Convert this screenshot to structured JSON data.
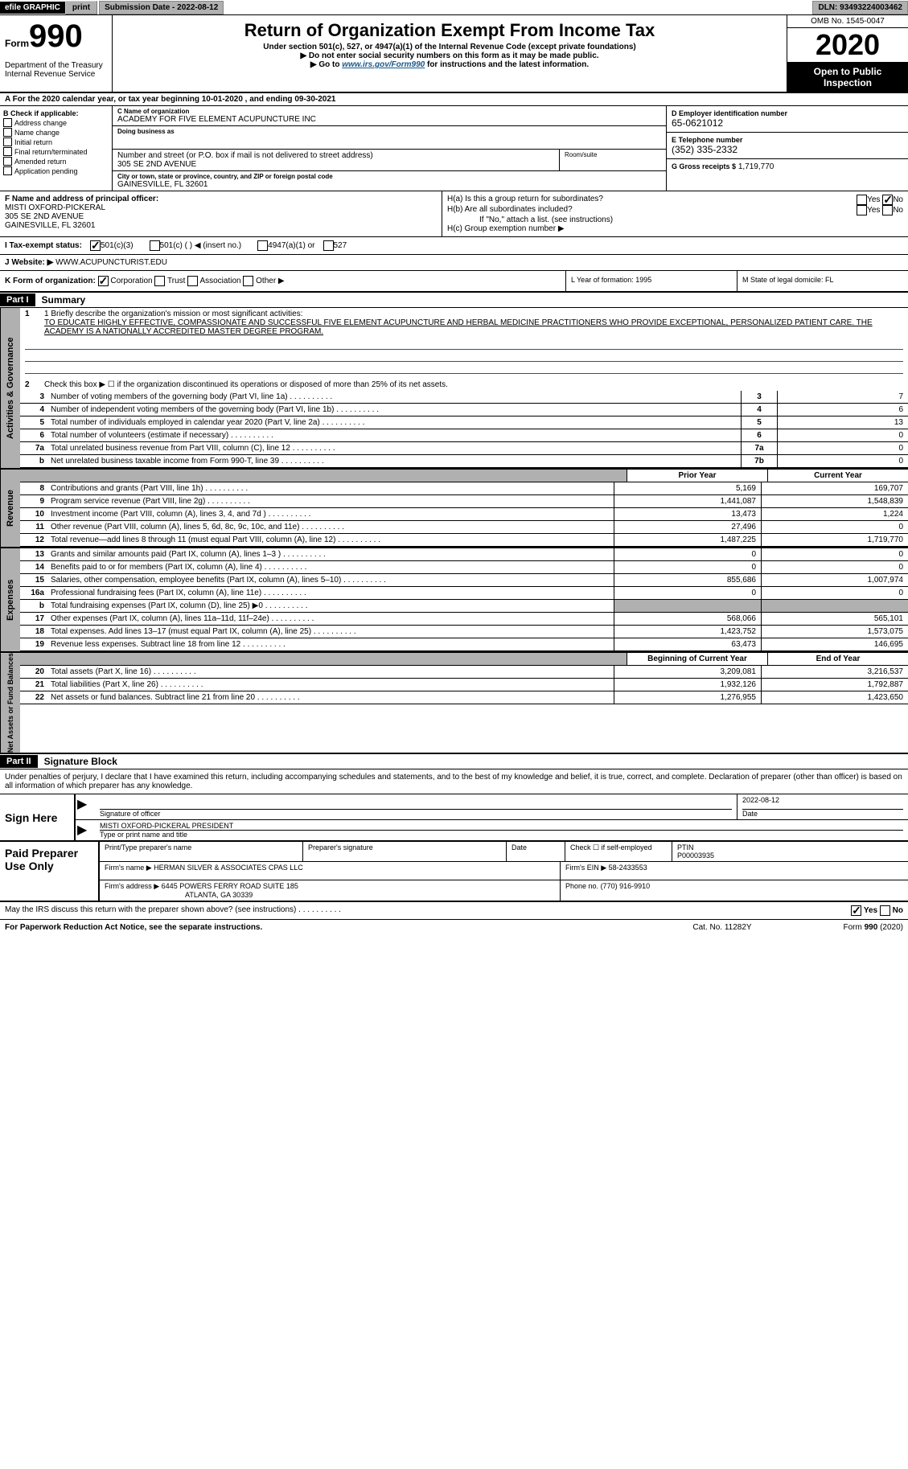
{
  "topbar": {
    "efile": "efile GRAPHIC",
    "print": "print",
    "submission_label": "Submission Date - 2022-08-12",
    "dln": "DLN: 93493224003462"
  },
  "header": {
    "form_word": "Form",
    "form_num": "990",
    "title": "Return of Organization Exempt From Income Tax",
    "subtitle": "Under section 501(c), 527, or 4947(a)(1) of the Internal Revenue Code (except private foundations)",
    "note1": "▶ Do not enter social security numbers on this form as it may be made public.",
    "note2_pre": "▶ Go to ",
    "note2_link": "www.irs.gov/Form990",
    "note2_post": " for instructions and the latest information.",
    "dept": "Department of the Treasury\nInternal Revenue Service",
    "omb": "OMB No. 1545-0047",
    "year": "2020",
    "open": "Open to Public Inspection"
  },
  "line_a": "A For the 2020 calendar year, or tax year beginning 10-01-2020    , and ending 09-30-2021",
  "box_b": {
    "label": "B Check if applicable:",
    "items": [
      "Address change",
      "Name change",
      "Initial return",
      "Final return/terminated",
      "Amended return",
      "Application pending"
    ]
  },
  "box_c": {
    "name_label": "C Name of organization",
    "name": "ACADEMY FOR FIVE ELEMENT ACUPUNCTURE INC",
    "dba_label": "Doing business as",
    "street_label": "Number and street (or P.O. box if mail is not delivered to street address)",
    "room_label": "Room/suite",
    "street": "305 SE 2ND AVENUE",
    "city_label": "City or town, state or province, country, and ZIP or foreign postal code",
    "city": "GAINESVILLE, FL  32601"
  },
  "box_d": {
    "ein_label": "D Employer identification number",
    "ein": "65-0621012",
    "phone_label": "E Telephone number",
    "phone": "(352) 335-2332",
    "gross_label": "G Gross receipts $",
    "gross": "1,719,770"
  },
  "box_f": {
    "label": "F Name and address of principal officer:",
    "name": "MISTI OXFORD-PICKERAL",
    "addr1": "305 SE 2ND AVENUE",
    "addr2": "GAINESVILLE, FL  32601"
  },
  "box_h": {
    "ha": "H(a)  Is this a group return for subordinates?",
    "hb": "H(b)  Are all subordinates included?",
    "hb_note": "If \"No,\" attach a list. (see instructions)",
    "hc": "H(c)  Group exemption number ▶",
    "yes": "Yes",
    "no": "No"
  },
  "tax_exempt": {
    "label": "I   Tax-exempt status:",
    "opt1": "501(c)(3)",
    "opt2": "501(c) (   ) ◀ (insert no.)",
    "opt3": "4947(a)(1) or",
    "opt4": "527"
  },
  "website": {
    "label": "J   Website: ▶",
    "value": "WWW.ACUPUNCTURIST.EDU"
  },
  "k_row": {
    "label": "K Form of organization:",
    "corp": "Corporation",
    "trust": "Trust",
    "assoc": "Association",
    "other": "Other ▶",
    "l_label": "L Year of formation: 1995",
    "m_label": "M State of legal domicile: FL"
  },
  "part1": {
    "header": "Part I",
    "title": "Summary"
  },
  "mission": {
    "label": "1  Briefly describe the organization's mission or most significant activities:",
    "text": "TO EDUCATE HIGHLY EFFECTIVE, COMPASSIONATE AND SUCCESSFUL FIVE ELEMENT ACUPUNCTURE AND HERBAL MEDICINE PRACTITIONERS WHO PROVIDE EXCEPTIONAL, PERSONALIZED PATIENT CARE. THE ACADEMY IS A NATIONALLY ACCREDITED MASTER DEGREE PROGRAM."
  },
  "line2": "Check this box ▶ ☐  if the organization discontinued its operations or disposed of more than 25% of its net assets.",
  "governance_lines": [
    {
      "num": "3",
      "desc": "Number of voting members of the governing body (Part VI, line 1a)",
      "box": "3",
      "val": "7"
    },
    {
      "num": "4",
      "desc": "Number of independent voting members of the governing body (Part VI, line 1b)",
      "box": "4",
      "val": "6"
    },
    {
      "num": "5",
      "desc": "Total number of individuals employed in calendar year 2020 (Part V, line 2a)",
      "box": "5",
      "val": "13"
    },
    {
      "num": "6",
      "desc": "Total number of volunteers (estimate if necessary)",
      "box": "6",
      "val": "0"
    },
    {
      "num": "7a",
      "desc": "Total unrelated business revenue from Part VIII, column (C), line 12",
      "box": "7a",
      "val": "0"
    },
    {
      "num": "b",
      "desc": "Net unrelated business taxable income from Form 990-T, line 39",
      "box": "7b",
      "val": "0"
    }
  ],
  "fin_headers": {
    "prior": "Prior Year",
    "current": "Current Year"
  },
  "revenue_lines": [
    {
      "num": "8",
      "desc": "Contributions and grants (Part VIII, line 1h)",
      "prior": "5,169",
      "current": "169,707"
    },
    {
      "num": "9",
      "desc": "Program service revenue (Part VIII, line 2g)",
      "prior": "1,441,087",
      "current": "1,548,839"
    },
    {
      "num": "10",
      "desc": "Investment income (Part VIII, column (A), lines 3, 4, and 7d )",
      "prior": "13,473",
      "current": "1,224"
    },
    {
      "num": "11",
      "desc": "Other revenue (Part VIII, column (A), lines 5, 6d, 8c, 9c, 10c, and 11e)",
      "prior": "27,496",
      "current": "0"
    },
    {
      "num": "12",
      "desc": "Total revenue—add lines 8 through 11 (must equal Part VIII, column (A), line 12)",
      "prior": "1,487,225",
      "current": "1,719,770"
    }
  ],
  "expense_lines": [
    {
      "num": "13",
      "desc": "Grants and similar amounts paid (Part IX, column (A), lines 1–3 )",
      "prior": "0",
      "current": "0"
    },
    {
      "num": "14",
      "desc": "Benefits paid to or for members (Part IX, column (A), line 4)",
      "prior": "0",
      "current": "0"
    },
    {
      "num": "15",
      "desc": "Salaries, other compensation, employee benefits (Part IX, column (A), lines 5–10)",
      "prior": "855,686",
      "current": "1,007,974"
    },
    {
      "num": "16a",
      "desc": "Professional fundraising fees (Part IX, column (A), line 11e)",
      "prior": "0",
      "current": "0"
    },
    {
      "num": "b",
      "desc": "Total fundraising expenses (Part IX, column (D), line 25) ▶0",
      "prior": "",
      "current": "",
      "grey": true
    },
    {
      "num": "17",
      "desc": "Other expenses (Part IX, column (A), lines 11a–11d, 11f–24e)",
      "prior": "568,066",
      "current": "565,101"
    },
    {
      "num": "18",
      "desc": "Total expenses. Add lines 13–17 (must equal Part IX, column (A), line 25)",
      "prior": "1,423,752",
      "current": "1,573,075"
    },
    {
      "num": "19",
      "desc": "Revenue less expenses. Subtract line 18 from line 12",
      "prior": "63,473",
      "current": "146,695"
    }
  ],
  "net_headers": {
    "prior": "Beginning of Current Year",
    "current": "End of Year"
  },
  "net_lines": [
    {
      "num": "20",
      "desc": "Total assets (Part X, line 16)",
      "prior": "3,209,081",
      "current": "3,216,537"
    },
    {
      "num": "21",
      "desc": "Total liabilities (Part X, line 26)",
      "prior": "1,932,126",
      "current": "1,792,887"
    },
    {
      "num": "22",
      "desc": "Net assets or fund balances. Subtract line 21 from line 20",
      "prior": "1,276,955",
      "current": "1,423,650"
    }
  ],
  "part2": {
    "header": "Part II",
    "title": "Signature Block"
  },
  "penalties": "Under penalties of perjury, I declare that I have examined this return, including accompanying schedules and statements, and to the best of my knowledge and belief, it is true, correct, and complete. Declaration of preparer (other than officer) is based on all information of which preparer has any knowledge.",
  "sign": {
    "label": "Sign Here",
    "sig_label": "Signature of officer",
    "date_label": "Date",
    "date": "2022-08-12",
    "name": "MISTI OXFORD-PICKERAL  PRESIDENT",
    "name_label": "Type or print name and title"
  },
  "paid": {
    "label": "Paid Preparer Use Only",
    "row1": {
      "c1_label": "Print/Type preparer's name",
      "c2_label": "Preparer's signature",
      "c3_label": "Date",
      "c4_label": "Check ☐ if self-employed",
      "c5_label": "PTIN",
      "c5_val": "P00003935"
    },
    "row2": {
      "firm_label": "Firm's name    ▶",
      "firm": "HERMAN SILVER & ASSOCIATES CPAS LLC",
      "ein_label": "Firm's EIN ▶",
      "ein": "58-2433553"
    },
    "row3": {
      "addr_label": "Firm's address ▶",
      "addr1": "6445 POWERS FERRY ROAD SUITE 185",
      "addr2": "ATLANTA, GA  30339",
      "phone_label": "Phone no.",
      "phone": "(770) 916-9910"
    }
  },
  "discuss": "May the IRS discuss this return with the preparer shown above? (see instructions)",
  "footer": {
    "left": "For Paperwork Reduction Act Notice, see the separate instructions.",
    "mid": "Cat. No. 11282Y",
    "right": "Form 990 (2020)"
  },
  "side_labels": {
    "gov": "Activities & Governance",
    "rev": "Revenue",
    "exp": "Expenses",
    "net": "Net Assets or Fund Balances"
  }
}
